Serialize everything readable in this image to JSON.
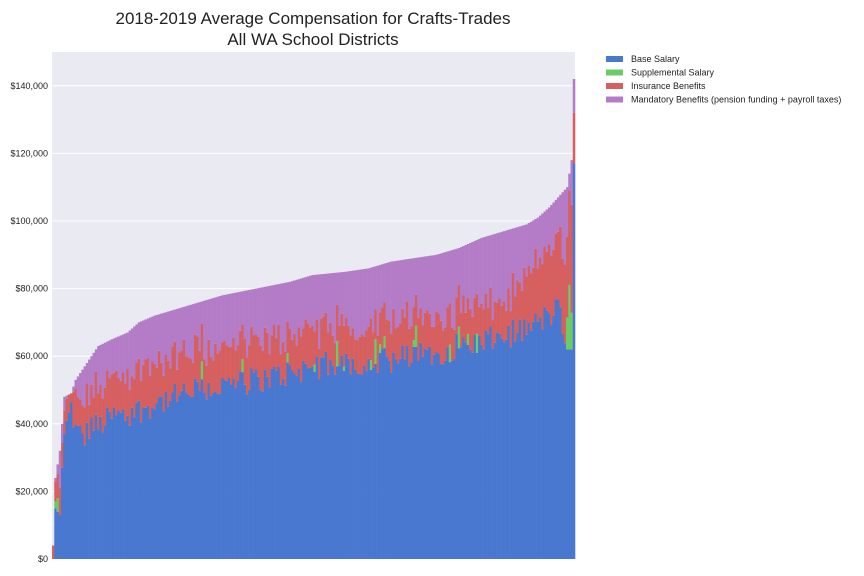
{
  "chart_data": {
    "type": "bar",
    "stacked": true,
    "title": [
      "2018-2019 Average Compensation for Crafts-Trades",
      "All WA School Districts"
    ],
    "xlabel": "",
    "ylabel": "",
    "ylim": [
      0,
      150000
    ],
    "yticks": [
      0,
      20000,
      40000,
      60000,
      80000,
      100000,
      120000,
      140000
    ],
    "ytick_labels": [
      "$0",
      "$20,000",
      "$40,000",
      "$60,000",
      "$80,000",
      "$100,000",
      "$120,000",
      "$140,000"
    ],
    "grid": true,
    "legend_position": "outside-top-right",
    "background": "#eaeaf2",
    "series": [
      {
        "name": "Base Salary",
        "color": "#4878cf"
      },
      {
        "name": "Supplemental Salary",
        "color": "#6acc65"
      },
      {
        "name": "Insurance Benefits",
        "color": "#d65f5f"
      },
      {
        "name": "Mandatory Benefits (pension funding + payroll taxes)",
        "color": "#b47cc7"
      }
    ],
    "total_profile": [
      [
        0,
        4000
      ],
      [
        1,
        24000
      ],
      [
        2,
        28000
      ],
      [
        3,
        32000
      ],
      [
        4,
        40000
      ],
      [
        5,
        48000
      ],
      [
        8,
        49000
      ],
      [
        10,
        53000
      ],
      [
        14,
        57000
      ],
      [
        17,
        60000
      ],
      [
        20,
        63000
      ],
      [
        26,
        65000
      ],
      [
        33,
        67000
      ],
      [
        38,
        70000
      ],
      [
        45,
        72000
      ],
      [
        55,
        74000
      ],
      [
        65,
        76000
      ],
      [
        75,
        78000
      ],
      [
        90,
        80000
      ],
      [
        105,
        82000
      ],
      [
        115,
        84000
      ],
      [
        130,
        85000
      ],
      [
        140,
        86000
      ],
      [
        150,
        88000
      ],
      [
        160,
        89000
      ],
      [
        170,
        90000
      ],
      [
        180,
        92000
      ],
      [
        190,
        95000
      ],
      [
        200,
        97000
      ],
      [
        210,
        99000
      ],
      [
        215,
        101000
      ],
      [
        220,
        104000
      ],
      [
        224,
        107000
      ],
      [
        228,
        110000
      ],
      [
        230,
        118000
      ],
      [
        231,
        142000
      ]
    ],
    "base_profile": [
      [
        0,
        0
      ],
      [
        1,
        15000
      ],
      [
        2,
        14000
      ],
      [
        3,
        13000
      ],
      [
        4,
        27000
      ],
      [
        5,
        37000
      ],
      [
        8,
        45000
      ],
      [
        10,
        38000
      ],
      [
        14,
        36000
      ],
      [
        17,
        40000
      ],
      [
        20,
        39000
      ],
      [
        26,
        42000
      ],
      [
        33,
        43000
      ],
      [
        38,
        44000
      ],
      [
        45,
        46000
      ],
      [
        55,
        48000
      ],
      [
        65,
        50000
      ],
      [
        75,
        51000
      ],
      [
        90,
        53000
      ],
      [
        105,
        55000
      ],
      [
        115,
        57000
      ],
      [
        130,
        58000
      ],
      [
        140,
        58000
      ],
      [
        150,
        59000
      ],
      [
        160,
        60000
      ],
      [
        170,
        61000
      ],
      [
        180,
        63000
      ],
      [
        190,
        64000
      ],
      [
        200,
        66000
      ],
      [
        210,
        68000
      ],
      [
        215,
        70000
      ],
      [
        220,
        72000
      ],
      [
        224,
        74000
      ],
      [
        228,
        62000
      ],
      [
        230,
        62000
      ],
      [
        231,
        117000
      ]
    ],
    "insurance_profile": [
      [
        0,
        4000
      ],
      [
        1,
        6000
      ],
      [
        3,
        8000
      ],
      [
        5,
        7000
      ],
      [
        10,
        9000
      ],
      [
        20,
        11000
      ],
      [
        40,
        12000
      ],
      [
        60,
        12000
      ],
      [
        100,
        11000
      ],
      [
        150,
        11000
      ],
      [
        200,
        10000
      ],
      [
        228,
        24000
      ],
      [
        230,
        32000
      ],
      [
        231,
        15000
      ]
    ],
    "supplemental_profile": [
      [
        0,
        0
      ],
      [
        2,
        4000
      ],
      [
        3,
        0
      ],
      [
        230,
        0
      ]
    ],
    "n_bars": 232
  }
}
